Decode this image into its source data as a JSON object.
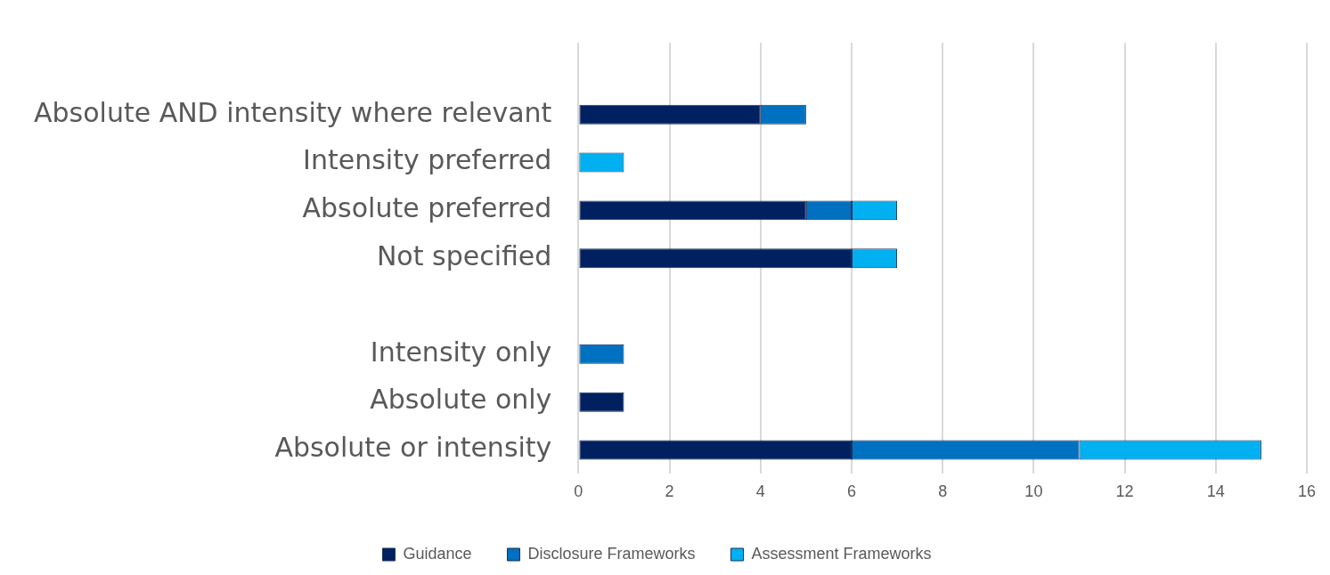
{
  "chart_data": {
    "type": "bar",
    "orientation": "horizontal",
    "stacked": true,
    "categories": [
      null,
      "Absolute AND intensity where relevant",
      "Intensity preferred",
      "Absolute preferred",
      "Not specified",
      null,
      "Intensity only",
      "Absolute only",
      "Absolute or intensity"
    ],
    "series": [
      {
        "name": "Guidance",
        "color": "#002060",
        "values": [
          null,
          4,
          null,
          5,
          6,
          null,
          null,
          1,
          6
        ]
      },
      {
        "name": "Disclosure Frameworks",
        "color": "#0070c0",
        "values": [
          null,
          1,
          null,
          1,
          null,
          null,
          1,
          null,
          5
        ]
      },
      {
        "name": "Assessment Frameworks",
        "color": "#00b0f0",
        "values": [
          null,
          null,
          1,
          1,
          1,
          null,
          null,
          null,
          4
        ]
      }
    ],
    "xlim": [
      0,
      16
    ],
    "xticks": [
      0,
      2,
      4,
      6,
      8,
      10,
      12,
      14,
      16
    ],
    "grid": "x",
    "legend": "bottom"
  }
}
